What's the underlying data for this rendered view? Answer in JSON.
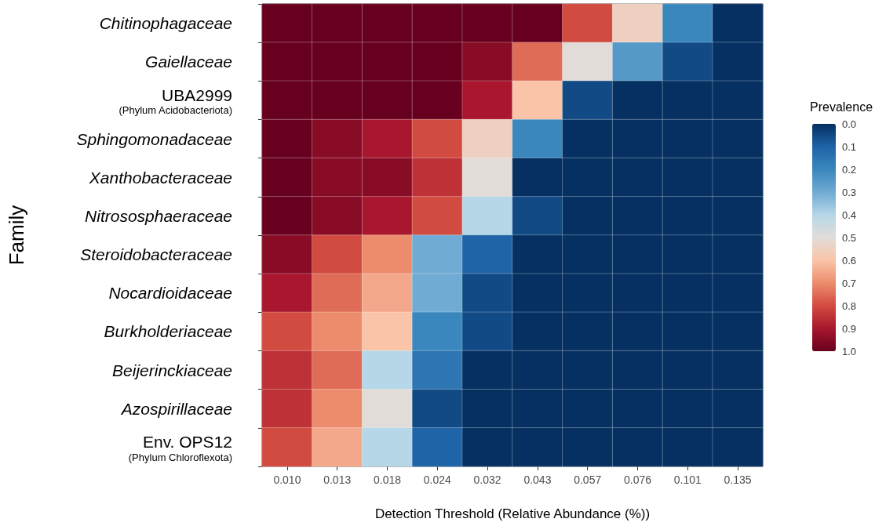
{
  "chart_data": {
    "type": "heatmap",
    "xlabel": "Detection Threshold (Relative Abundance (%))",
    "ylabel": "Family",
    "legend_title": "Prevalence",
    "categories": [
      "0.010",
      "0.013",
      "0.018",
      "0.024",
      "0.032",
      "0.043",
      "0.057",
      "0.076",
      "0.101",
      "0.135"
    ],
    "y_categories": [
      "Chitinophagaceae",
      "Gaiellaceae",
      "UBA2999\n(Phylum Acidobacteriota)",
      "Sphingomonadaceae",
      "Xanthobacteraceae",
      "Nitrososphaeraceae",
      "Steroidobacteraceae",
      "Nocardioidaceae",
      "Burkholderiaceae",
      "Beijerinckiaceae",
      "Azospirillaceae",
      "Env. OPS12\n(Phylum Chloroflexota)"
    ],
    "cells": [
      [
        1,
        1,
        1,
        1,
        1,
        1,
        0.8,
        0.55,
        0.2,
        0
      ],
      [
        1,
        1,
        1,
        1,
        0.95,
        0.75,
        0.5,
        0.25,
        0.05,
        0
      ],
      [
        1,
        1,
        1,
        1,
        0.9,
        0.6,
        0.05,
        0,
        0,
        0
      ],
      [
        1,
        0.95,
        0.9,
        0.8,
        0.55,
        0.2,
        0,
        0,
        0,
        0
      ],
      [
        1,
        0.95,
        0.95,
        0.85,
        0.5,
        0,
        0,
        0,
        0,
        0
      ],
      [
        1,
        0.95,
        0.9,
        0.8,
        0.4,
        0.05,
        0,
        0,
        0,
        0
      ],
      [
        0.95,
        0.8,
        0.7,
        0.3,
        0.1,
        0,
        0,
        0,
        0,
        0
      ],
      [
        0.9,
        0.75,
        0.65,
        0.3,
        0.05,
        0,
        0,
        0,
        0,
        0
      ],
      [
        0.8,
        0.7,
        0.6,
        0.2,
        0.05,
        0,
        0,
        0,
        0,
        0
      ],
      [
        0.85,
        0.75,
        0.4,
        0.15,
        0,
        0,
        0,
        0,
        0,
        0
      ],
      [
        0.85,
        0.7,
        0.5,
        0.05,
        0,
        0,
        0,
        0,
        0,
        0
      ],
      [
        0.8,
        0.65,
        0.4,
        0.1,
        0,
        0,
        0,
        0,
        0,
        0
      ]
    ],
    "clim": [
      0,
      1
    ],
    "cticks": [
      {
        "value": 0,
        "label": "0.0"
      },
      {
        "value": 0.1,
        "label": "0.1"
      },
      {
        "value": 0.2,
        "label": "0.2"
      },
      {
        "value": 0.3,
        "label": "0.3"
      },
      {
        "value": 0.4,
        "label": "0.4"
      },
      {
        "value": 0.5,
        "label": "0.5"
      },
      {
        "value": 0.6,
        "label": "0.6"
      },
      {
        "value": 0.7,
        "label": "0.7"
      },
      {
        "value": 0.8,
        "label": "0.8"
      },
      {
        "value": 0.9,
        "label": "0.9"
      },
      {
        "value": 1,
        "label": "1.0"
      }
    ]
  }
}
